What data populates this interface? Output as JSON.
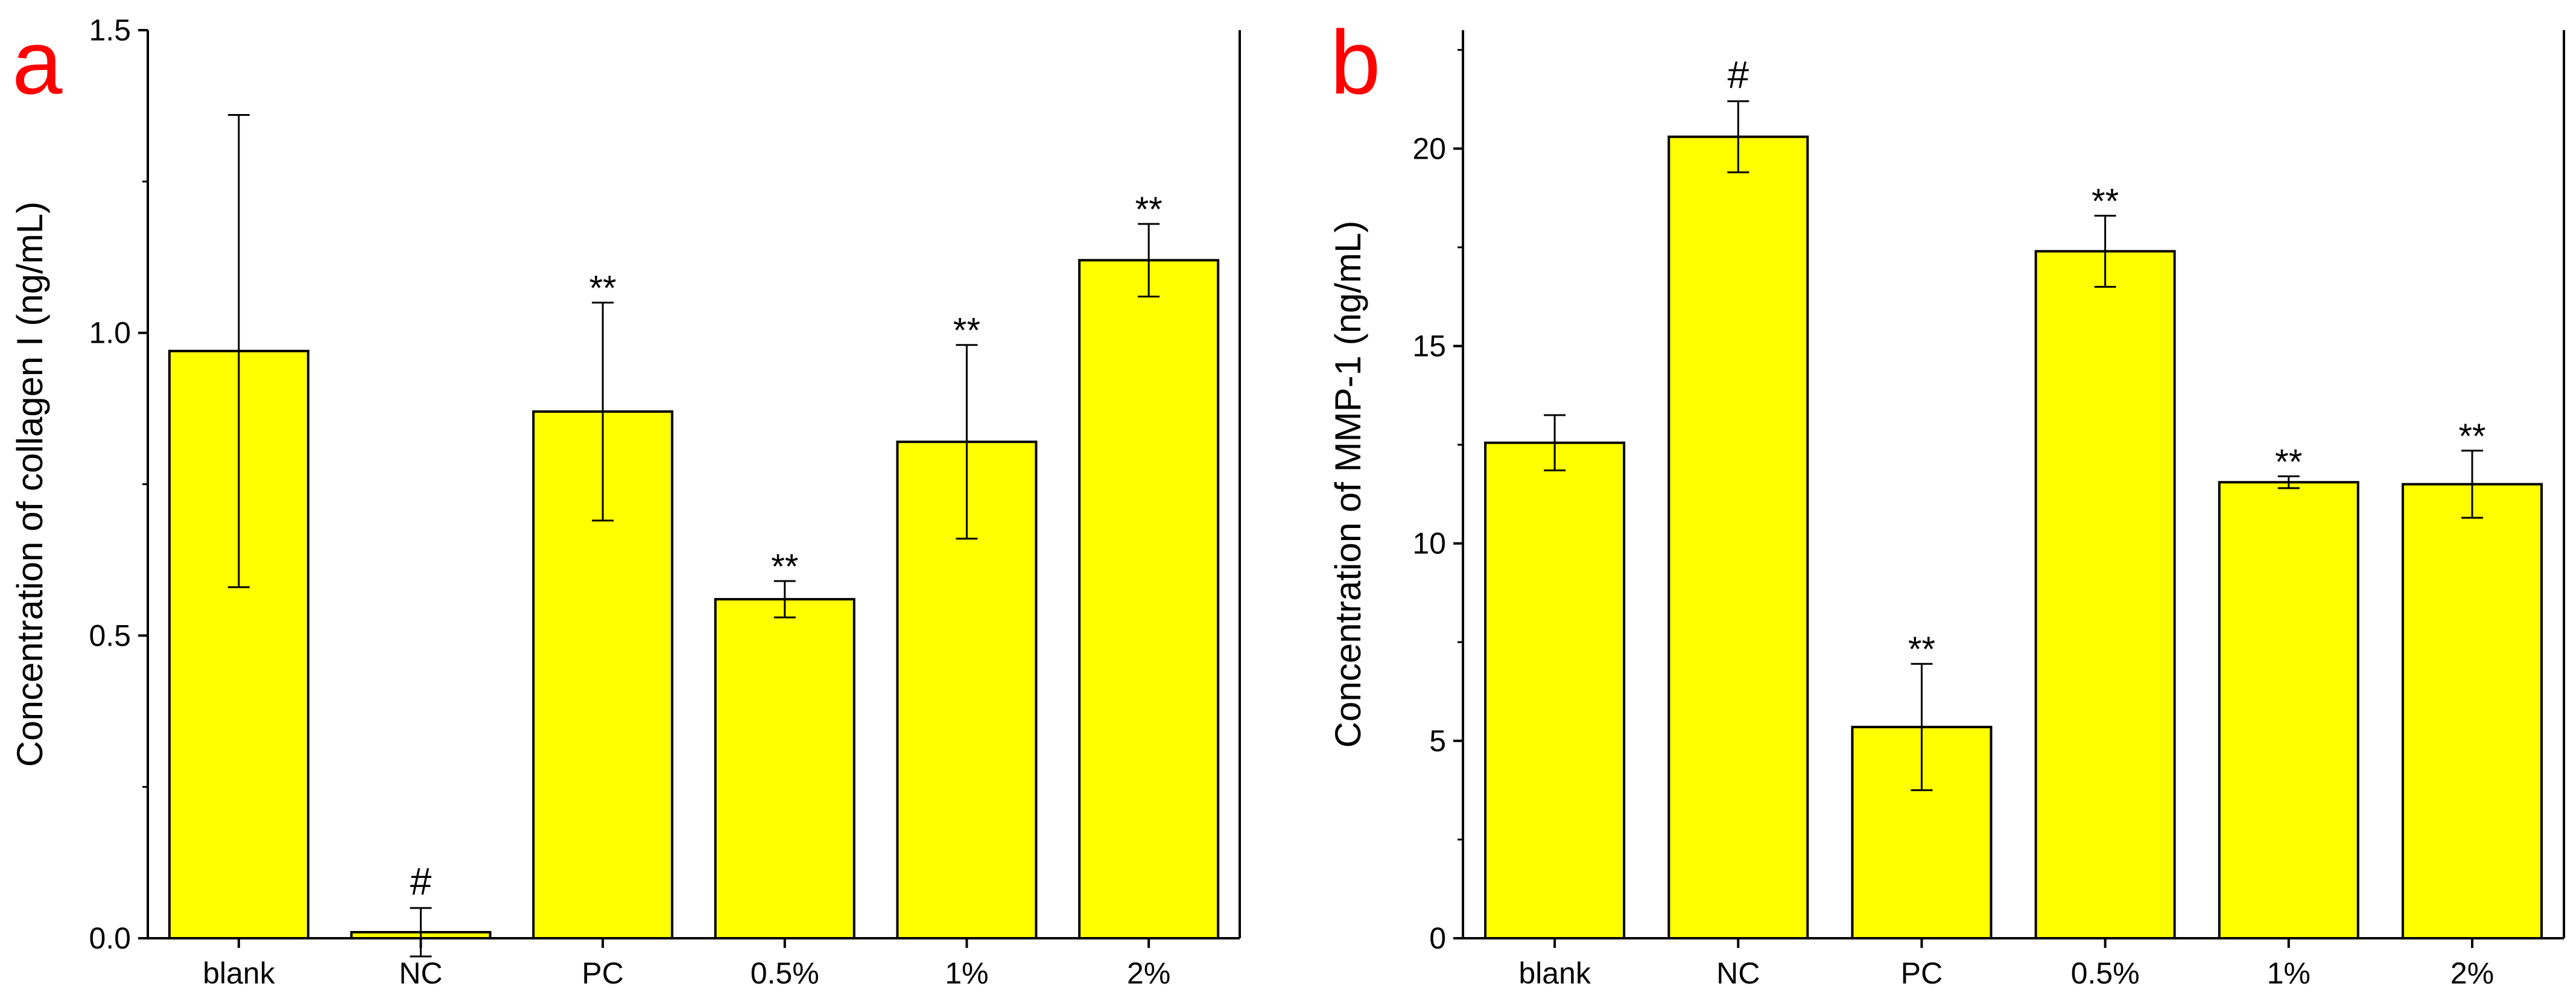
{
  "colors": {
    "bar_fill": "#ffff00",
    "panel_letter": "#ff0000",
    "axis": "#000000"
  },
  "chart_data": [
    {
      "type": "bar",
      "panel_label": "a",
      "title": "",
      "xlabel": "",
      "ylabel": "Concentration of collagen I (ng/mL)",
      "categories": [
        "blank",
        "NC",
        "PC",
        "0.5%",
        "1%",
        "2%"
      ],
      "values": [
        0.97,
        0.01,
        0.87,
        0.56,
        0.82,
        1.12
      ],
      "errors": [
        0.39,
        0.04,
        0.18,
        0.03,
        0.16,
        0.06
      ],
      "significance": [
        "",
        "#",
        "**",
        "**",
        "**",
        "**"
      ],
      "ylim": [
        0,
        1.5
      ],
      "yticks": [
        0.0,
        0.5,
        1.0,
        1.5
      ],
      "ytick_labels": [
        "0.0",
        "0.5",
        "1.0",
        "1.5"
      ]
    },
    {
      "type": "bar",
      "panel_label": "b",
      "title": "",
      "xlabel": "",
      "ylabel": "Concentration of MMP-1 (ng/mL)",
      "categories": [
        "blank",
        "NC",
        "PC",
        "0.5%",
        "1%",
        "2%"
      ],
      "values": [
        12.55,
        20.3,
        5.35,
        17.4,
        11.55,
        11.5
      ],
      "errors": [
        0.7,
        0.9,
        1.6,
        0.9,
        0.15,
        0.85
      ],
      "significance": [
        "",
        "#",
        "**",
        "**",
        "**",
        "**"
      ],
      "ylim": [
        0,
        23
      ],
      "yticks": [
        0,
        5,
        10,
        15,
        20
      ],
      "ytick_labels": [
        "0",
        "5",
        "10",
        "15",
        "20"
      ]
    }
  ]
}
